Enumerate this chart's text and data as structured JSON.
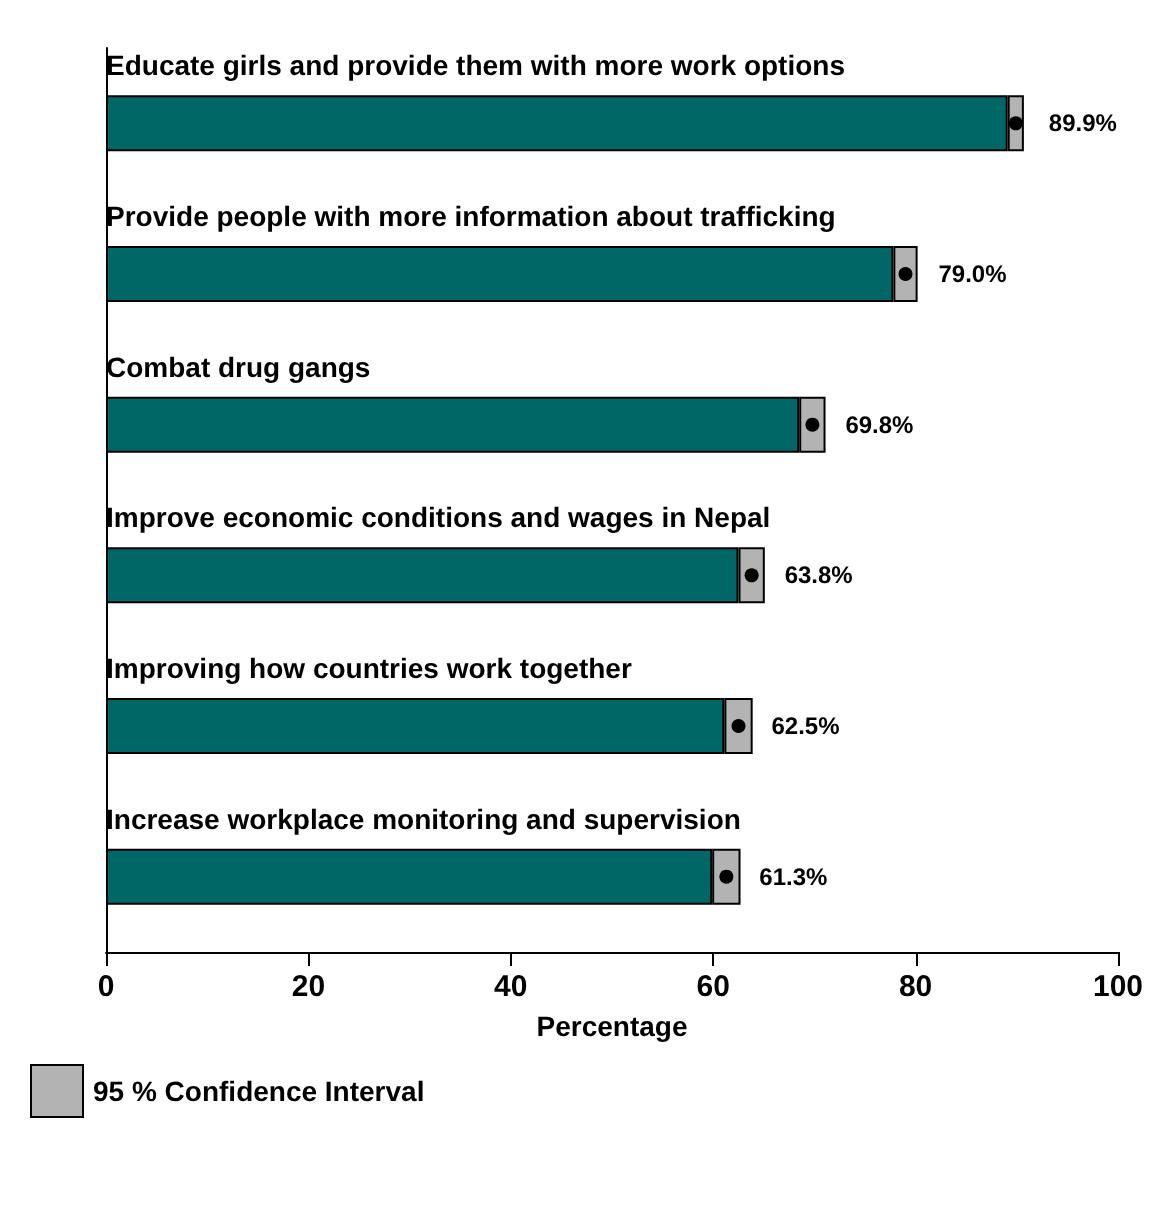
{
  "chart_data": {
    "type": "bar",
    "orientation": "horizontal",
    "stacked": true,
    "categories": [
      "Educate girls and provide them with more work options",
      "Provide people with more information about trafficking",
      "Combat drug gangs",
      "Improve economic conditions and wages in Nepal",
      "Improving how countries work together",
      "Increase workplace monitoring and supervision"
    ],
    "series": [
      {
        "color": "#006666",
        "values": [
          89.1,
          77.8,
          68.5,
          62.5,
          61.1,
          59.9
        ]
      },
      {
        "name": "95 % Confidence Interval",
        "color": "#b3b3b3",
        "values": [
          1.6,
          2.4,
          2.6,
          2.6,
          2.8,
          2.8
        ]
      },
      {
        "type": "scatter",
        "color": "#000000",
        "marker": "circle",
        "values": [
          89.9,
          79.0,
          69.8,
          63.8,
          62.5,
          61.3
        ],
        "value_labels": [
          "89.9%",
          "79.0%",
          "69.8%",
          "63.8%",
          "62.5%",
          "61.3%"
        ]
      }
    ],
    "xlim": [
      0,
      100
    ],
    "xticks": [
      0,
      20,
      40,
      60,
      80,
      100
    ],
    "xlabel": "Percentage",
    "legend": "bottom left",
    "grid": false
  }
}
